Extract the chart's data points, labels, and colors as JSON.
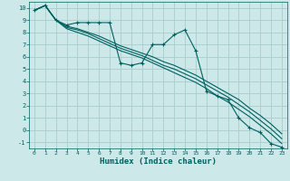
{
  "xlabel": "Humidex (Indice chaleur)",
  "background_color": "#cce8e8",
  "grid_color": "#aacccc",
  "line_color": "#006060",
  "xlim": [
    -0.5,
    23.5
  ],
  "ylim": [
    -1.5,
    10.5
  ],
  "xticks": [
    0,
    1,
    2,
    3,
    4,
    5,
    6,
    7,
    8,
    9,
    10,
    11,
    12,
    13,
    14,
    15,
    16,
    17,
    18,
    19,
    20,
    21,
    22,
    23
  ],
  "yticks": [
    -1,
    0,
    1,
    2,
    3,
    4,
    5,
    6,
    7,
    8,
    9,
    10
  ],
  "series1_x": [
    0,
    1,
    2,
    3,
    4,
    5,
    6,
    7,
    8,
    9,
    10,
    11,
    12,
    13,
    14,
    15,
    16,
    17,
    18,
    19,
    20,
    21,
    22,
    23
  ],
  "series1_y": [
    9.8,
    10.2,
    9.0,
    8.6,
    8.8,
    8.8,
    8.8,
    8.8,
    5.5,
    5.3,
    5.5,
    7.0,
    7.0,
    7.8,
    8.2,
    6.5,
    3.2,
    2.8,
    2.5,
    1.0,
    0.2,
    -0.2,
    -1.1,
    -1.4
  ],
  "series2_x": [
    0,
    1,
    2,
    3,
    4,
    5,
    6,
    7,
    8,
    9,
    10,
    11,
    12,
    13,
    14,
    15,
    16,
    17,
    18,
    19,
    20,
    21,
    22,
    23
  ],
  "series2_y": [
    9.8,
    10.2,
    9.0,
    8.5,
    8.3,
    8.0,
    7.7,
    7.3,
    6.9,
    6.6,
    6.3,
    6.0,
    5.6,
    5.3,
    4.9,
    4.5,
    4.0,
    3.5,
    3.0,
    2.5,
    1.8,
    1.2,
    0.5,
    -0.3
  ],
  "series3_x": [
    0,
    1,
    2,
    3,
    4,
    5,
    6,
    7,
    8,
    9,
    10,
    11,
    12,
    13,
    14,
    15,
    16,
    17,
    18,
    19,
    20,
    21,
    22,
    23
  ],
  "series3_y": [
    9.8,
    10.2,
    9.0,
    8.4,
    8.2,
    7.9,
    7.5,
    7.1,
    6.7,
    6.4,
    6.1,
    5.7,
    5.3,
    5.0,
    4.6,
    4.2,
    3.7,
    3.2,
    2.7,
    2.1,
    1.5,
    0.8,
    0.1,
    -0.7
  ],
  "series4_x": [
    0,
    1,
    2,
    3,
    4,
    5,
    6,
    7,
    8,
    9,
    10,
    11,
    12,
    13,
    14,
    15,
    16,
    17,
    18,
    19,
    20,
    21,
    22,
    23
  ],
  "series4_y": [
    9.8,
    10.2,
    9.0,
    8.3,
    8.0,
    7.7,
    7.3,
    6.9,
    6.5,
    6.2,
    5.9,
    5.5,
    5.1,
    4.7,
    4.3,
    3.9,
    3.4,
    2.8,
    2.3,
    1.7,
    1.1,
    0.4,
    -0.3,
    -1.1
  ]
}
